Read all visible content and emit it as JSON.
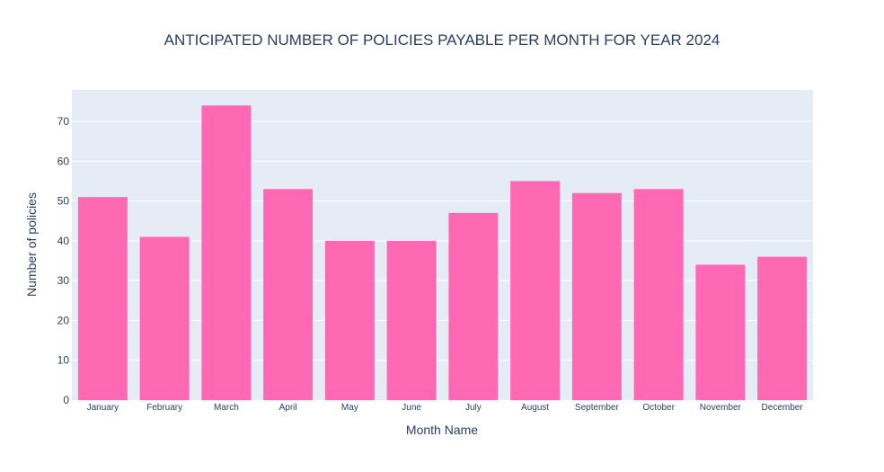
{
  "chart_data": {
    "type": "bar",
    "title": "ANTICIPATED NUMBER OF POLICIES PAYABLE PER MONTH FOR YEAR 2024",
    "xlabel": "Month Name",
    "ylabel": "Number of policies",
    "categories": [
      "January",
      "February",
      "March",
      "April",
      "May",
      "June",
      "July",
      "August",
      "September",
      "October",
      "November",
      "December"
    ],
    "values": [
      51,
      41,
      74,
      53,
      40,
      40,
      47,
      55,
      52,
      53,
      34,
      36
    ],
    "ylim": [
      0,
      77.9
    ],
    "yticks": [
      0,
      10,
      20,
      30,
      40,
      50,
      60,
      70
    ],
    "grid": true,
    "legend": "none",
    "colors": {
      "bar": "#ff69b4",
      "plot_bg": "#e5ecf6",
      "grid": "#ffffff",
      "text": "#2a3f5f"
    }
  }
}
